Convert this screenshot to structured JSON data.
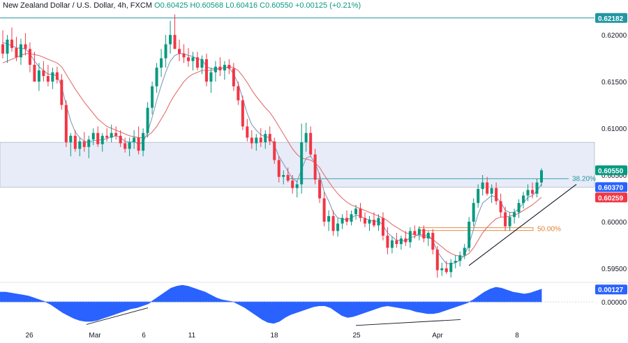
{
  "header": {
    "symbol": "New Zealand Dollar / U.S. Dollar, 4h, FXCM",
    "open": "O0.60425",
    "high": "H0.60568",
    "low": "L0.60416",
    "close": "C0.60550",
    "change": "+0.00125 (+0.21%)"
  },
  "colors": {
    "up": "#089981",
    "down": "#f23645",
    "ma_fast": "#7f9bbd",
    "ma_slow": "#e0706f",
    "level": "#2196a3",
    "fib50": "#e08030",
    "zone": "#e8ecf8",
    "osc": "#2962ff",
    "trend": "#131722"
  },
  "chart_data": [
    {
      "type": "candlestick",
      "title": "New Zealand Dollar / U.S. Dollar, 4h, FXCM",
      "ylim": [
        0.5935,
        0.6224
      ],
      "price_ticks": [
        "0.62000",
        "0.61500",
        "0.61000",
        "0.60500",
        "0.60000",
        "0.59500"
      ],
      "x_labels": [
        "26",
        "Mar",
        "6",
        "11",
        "18",
        "25",
        "Apr",
        "8"
      ],
      "price_tags": [
        {
          "label": "0.62182",
          "value": 0.62182,
          "color": "#2196a3"
        },
        {
          "label": "0.60550",
          "value": 0.6055,
          "color": "#089981"
        },
        {
          "label": "0.60370",
          "value": 0.6037,
          "color": "#2962ff"
        },
        {
          "label": "0.60259",
          "value": 0.60259,
          "color": "#f23645"
        }
      ],
      "annotations": [
        {
          "label": "38.20%",
          "value": 0.6046,
          "color": "#2196a3"
        },
        {
          "label": "50.00%",
          "value": 0.5992,
          "color": "#e08030"
        }
      ],
      "resistance_level": 0.62182,
      "zone": [
        0.6037,
        0.6085
      ],
      "trendline": [
        [
          0.5953,
          0.604
        ]
      ],
      "ohlc": [
        [
          0.619,
          0.6205,
          0.6175,
          0.618
        ],
        [
          0.618,
          0.62,
          0.617,
          0.6195
        ],
        [
          0.6195,
          0.6208,
          0.6182,
          0.6186
        ],
        [
          0.6186,
          0.6198,
          0.6172,
          0.6176
        ],
        [
          0.6176,
          0.6196,
          0.6168,
          0.619
        ],
        [
          0.619,
          0.6202,
          0.6178,
          0.6185
        ],
        [
          0.6185,
          0.6192,
          0.616,
          0.6168
        ],
        [
          0.6168,
          0.6182,
          0.615,
          0.615
        ],
        [
          0.615,
          0.617,
          0.614,
          0.6162
        ],
        [
          0.6162,
          0.6172,
          0.615,
          0.6156
        ],
        [
          0.6156,
          0.6168,
          0.6145,
          0.615
        ],
        [
          0.615,
          0.6165,
          0.6142,
          0.616
        ],
        [
          0.616,
          0.6166,
          0.6148,
          0.6152
        ],
        [
          0.6152,
          0.6158,
          0.612,
          0.6125
        ],
        [
          0.6125,
          0.613,
          0.608,
          0.6085
        ],
        [
          0.6085,
          0.6095,
          0.607,
          0.6092
        ],
        [
          0.6092,
          0.6098,
          0.6075,
          0.6078
        ],
        [
          0.6078,
          0.609,
          0.607,
          0.6086
        ],
        [
          0.6086,
          0.6096,
          0.6075,
          0.608
        ],
        [
          0.608,
          0.6092,
          0.6068,
          0.6088
        ],
        [
          0.6088,
          0.61,
          0.6082,
          0.6095
        ],
        [
          0.6095,
          0.6102,
          0.608,
          0.6083
        ],
        [
          0.6083,
          0.6095,
          0.6075,
          0.6092
        ],
        [
          0.6092,
          0.61,
          0.6086,
          0.609
        ],
        [
          0.609,
          0.6104,
          0.6085,
          0.6095
        ],
        [
          0.6095,
          0.6102,
          0.6088,
          0.6092
        ],
        [
          0.6092,
          0.6098,
          0.608,
          0.6084
        ],
        [
          0.6084,
          0.609,
          0.6074,
          0.6078
        ],
        [
          0.6078,
          0.609,
          0.607,
          0.6085
        ],
        [
          0.6085,
          0.6098,
          0.6078,
          0.609
        ],
        [
          0.609,
          0.6102,
          0.6072,
          0.6076
        ],
        [
          0.6076,
          0.61,
          0.607,
          0.6095
        ],
        [
          0.6095,
          0.6128,
          0.609,
          0.6122
        ],
        [
          0.6122,
          0.615,
          0.6115,
          0.6145
        ],
        [
          0.6145,
          0.617,
          0.6138,
          0.6165
        ],
        [
          0.6165,
          0.6185,
          0.6155,
          0.6175
        ],
        [
          0.6175,
          0.62,
          0.6165,
          0.619
        ],
        [
          0.619,
          0.6215,
          0.618,
          0.62
        ],
        [
          0.62,
          0.6222,
          0.6185,
          0.6185
        ],
        [
          0.6185,
          0.6195,
          0.6172,
          0.618
        ],
        [
          0.618,
          0.619,
          0.617,
          0.6176
        ],
        [
          0.6176,
          0.6186,
          0.6166,
          0.6172
        ],
        [
          0.6172,
          0.6182,
          0.6162,
          0.6176
        ],
        [
          0.6176,
          0.6182,
          0.6162,
          0.6165
        ],
        [
          0.6165,
          0.6178,
          0.6158,
          0.6174
        ],
        [
          0.6174,
          0.618,
          0.6145,
          0.615
        ],
        [
          0.615,
          0.6165,
          0.6138,
          0.616
        ],
        [
          0.616,
          0.6172,
          0.615,
          0.6166
        ],
        [
          0.6166,
          0.6176,
          0.6156,
          0.6162
        ],
        [
          0.6162,
          0.6172,
          0.6152,
          0.6168
        ],
        [
          0.6168,
          0.6174,
          0.6158,
          0.6164
        ],
        [
          0.6164,
          0.617,
          0.614,
          0.6145
        ],
        [
          0.6145,
          0.615,
          0.6125,
          0.613
        ],
        [
          0.613,
          0.6135,
          0.6098,
          0.6102
        ],
        [
          0.6102,
          0.611,
          0.6086,
          0.609
        ],
        [
          0.609,
          0.6098,
          0.6078,
          0.6084
        ],
        [
          0.6084,
          0.6094,
          0.6076,
          0.609
        ],
        [
          0.609,
          0.61,
          0.608,
          0.6085
        ],
        [
          0.6085,
          0.6098,
          0.6078,
          0.6094
        ],
        [
          0.6094,
          0.6102,
          0.6082,
          0.6086
        ],
        [
          0.6086,
          0.609,
          0.6062,
          0.6066
        ],
        [
          0.6066,
          0.607,
          0.6042,
          0.6048
        ],
        [
          0.6048,
          0.6055,
          0.604,
          0.605
        ],
        [
          0.605,
          0.6058,
          0.6042,
          0.6044
        ],
        [
          0.6044,
          0.605,
          0.603,
          0.6036
        ],
        [
          0.6036,
          0.6044,
          0.6026,
          0.604
        ],
        [
          0.604,
          0.6105,
          0.603,
          0.6085
        ],
        [
          0.6085,
          0.6106,
          0.6075,
          0.6095
        ],
        [
          0.6095,
          0.6102,
          0.607,
          0.6072
        ],
        [
          0.6072,
          0.6078,
          0.604,
          0.6045
        ],
        [
          0.6045,
          0.6052,
          0.602,
          0.6025
        ],
        [
          0.6025,
          0.6032,
          0.5995,
          0.6
        ],
        [
          0.6,
          0.6012,
          0.599,
          0.6006
        ],
        [
          0.6006,
          0.6012,
          0.5985,
          0.599
        ],
        [
          0.599,
          0.6004,
          0.5984,
          0.5998
        ],
        [
          0.5998,
          0.6008,
          0.5992,
          0.6004
        ],
        [
          0.6004,
          0.6012,
          0.5996,
          0.6
        ],
        [
          0.6,
          0.6012,
          0.5996,
          0.6008
        ],
        [
          0.6008,
          0.6018,
          0.6002,
          0.6014
        ],
        [
          0.6014,
          0.602,
          0.6,
          0.6004
        ],
        [
          0.6004,
          0.601,
          0.5994,
          0.5998
        ],
        [
          0.5998,
          0.6006,
          0.599,
          0.6002
        ],
        [
          0.6002,
          0.601,
          0.5994,
          0.5996
        ],
        [
          0.5996,
          0.6008,
          0.599,
          0.6004
        ],
        [
          0.6004,
          0.601,
          0.598,
          0.5985
        ],
        [
          0.5985,
          0.5994,
          0.5965,
          0.5972
        ],
        [
          0.5972,
          0.5984,
          0.5966,
          0.598
        ],
        [
          0.598,
          0.5988,
          0.5972,
          0.5976
        ],
        [
          0.5976,
          0.5985,
          0.597,
          0.5982
        ],
        [
          0.5982,
          0.599,
          0.5974,
          0.5978
        ],
        [
          0.5978,
          0.5994,
          0.5972,
          0.599
        ],
        [
          0.599,
          0.5996,
          0.5982,
          0.5986
        ],
        [
          0.5986,
          0.5995,
          0.598,
          0.5992
        ],
        [
          0.5992,
          0.5996,
          0.5978,
          0.5982
        ],
        [
          0.5982,
          0.599,
          0.5974,
          0.5988
        ],
        [
          0.5988,
          0.5992,
          0.5965,
          0.597
        ],
        [
          0.597,
          0.5974,
          0.594,
          0.5948
        ],
        [
          0.5948,
          0.5956,
          0.5942,
          0.595
        ],
        [
          0.595,
          0.5958,
          0.5944,
          0.5946
        ],
        [
          0.5946,
          0.596,
          0.594,
          0.5956
        ],
        [
          0.5956,
          0.5964,
          0.595,
          0.5958
        ],
        [
          0.5958,
          0.5968,
          0.5952,
          0.5964
        ],
        [
          0.5964,
          0.5976,
          0.596,
          0.5972
        ],
        [
          0.5972,
          0.6005,
          0.5968,
          0.6
        ],
        [
          0.6,
          0.6025,
          0.5995,
          0.602
        ],
        [
          0.602,
          0.604,
          0.6015,
          0.6035
        ],
        [
          0.6035,
          0.605,
          0.6028,
          0.6042
        ],
        [
          0.6042,
          0.6048,
          0.6028,
          0.603
        ],
        [
          0.603,
          0.604,
          0.602,
          0.6036
        ],
        [
          0.6036,
          0.6042,
          0.6018,
          0.6022
        ],
        [
          0.6022,
          0.603,
          0.6005,
          0.601
        ],
        [
          0.601,
          0.6016,
          0.599,
          0.5995
        ],
        [
          0.5995,
          0.601,
          0.599,
          0.6005
        ],
        [
          0.6005,
          0.6014,
          0.5998,
          0.601
        ],
        [
          0.601,
          0.6024,
          0.6004,
          0.602
        ],
        [
          0.602,
          0.6032,
          0.6014,
          0.6028
        ],
        [
          0.6028,
          0.604,
          0.6022,
          0.6034
        ],
        [
          0.6034,
          0.6042,
          0.6025,
          0.603
        ],
        [
          0.603,
          0.6046,
          0.6026,
          0.6042
        ],
        [
          0.6042,
          0.6057,
          0.6038,
          0.6055
        ]
      ],
      "ma_fast": [
        0.6192,
        0.619,
        0.6189,
        0.6186,
        0.6186,
        0.6185,
        0.618,
        0.6172,
        0.6166,
        0.6162,
        0.6158,
        0.6158,
        0.6156,
        0.6145,
        0.6125,
        0.6108,
        0.6096,
        0.609,
        0.6086,
        0.6085,
        0.6087,
        0.6087,
        0.6088,
        0.6089,
        0.6091,
        0.6092,
        0.609,
        0.6086,
        0.6085,
        0.6086,
        0.6083,
        0.6085,
        0.6096,
        0.6112,
        0.613,
        0.6146,
        0.616,
        0.6172,
        0.6178,
        0.618,
        0.618,
        0.6178,
        0.6177,
        0.6174,
        0.6174,
        0.6166,
        0.6164,
        0.6164,
        0.6164,
        0.6165,
        0.6165,
        0.6158,
        0.6148,
        0.6132,
        0.6116,
        0.6104,
        0.6098,
        0.6093,
        0.6091,
        0.609,
        0.6082,
        0.607,
        0.6062,
        0.6054,
        0.6046,
        0.6043,
        0.6056,
        0.6068,
        0.607,
        0.6063,
        0.605,
        0.6032,
        0.6022,
        0.601,
        0.6004,
        0.6003,
        0.6002,
        0.6004,
        0.6007,
        0.6006,
        0.6003,
        0.6002,
        0.6,
        0.6001,
        0.5996,
        0.5988,
        0.5984,
        0.598,
        0.598,
        0.5979,
        0.5983,
        0.5984,
        0.5987,
        0.5985,
        0.5986,
        0.598,
        0.5968,
        0.5961,
        0.5955,
        0.5955,
        0.5956,
        0.5959,
        0.5964,
        0.5976,
        0.5992,
        0.6008,
        0.602,
        0.6024,
        0.6028,
        0.6026,
        0.6021,
        0.6012,
        0.601,
        0.601,
        0.6014,
        0.602,
        0.6026,
        0.6028,
        0.6033,
        0.604
      ],
      "ma_slow": [
        0.617,
        0.6172,
        0.6174,
        0.6176,
        0.6178,
        0.618,
        0.618,
        0.6179,
        0.6178,
        0.6176,
        0.6174,
        0.6172,
        0.617,
        0.6166,
        0.6158,
        0.615,
        0.6142,
        0.6135,
        0.6128,
        0.6122,
        0.6116,
        0.611,
        0.6106,
        0.6102,
        0.61,
        0.6098,
        0.6096,
        0.6094,
        0.6092,
        0.6091,
        0.609,
        0.609,
        0.6092,
        0.6096,
        0.6102,
        0.611,
        0.6118,
        0.6128,
        0.6136,
        0.6143,
        0.615,
        0.6155,
        0.6158,
        0.616,
        0.6162,
        0.6162,
        0.6162,
        0.6163,
        0.6164,
        0.6165,
        0.6166,
        0.6165,
        0.6162,
        0.6156,
        0.6149,
        0.6141,
        0.6134,
        0.6128,
        0.6122,
        0.6117,
        0.611,
        0.6102,
        0.6094,
        0.6086,
        0.6078,
        0.6072,
        0.6068,
        0.6067,
        0.6066,
        0.6063,
        0.6058,
        0.605,
        0.6043,
        0.6036,
        0.603,
        0.6025,
        0.6021,
        0.6018,
        0.6016,
        0.6014,
        0.6012,
        0.601,
        0.6008,
        0.6006,
        0.6004,
        0.6001,
        0.5997,
        0.5994,
        0.5991,
        0.5988,
        0.5987,
        0.5986,
        0.5985,
        0.5984,
        0.5983,
        0.5981,
        0.5977,
        0.5973,
        0.5969,
        0.5966,
        0.5964,
        0.5963,
        0.5963,
        0.5966,
        0.5972,
        0.598,
        0.5988,
        0.5994,
        0.5999,
        0.6003,
        0.6005,
        0.6005,
        0.6006,
        0.6007,
        0.6009,
        0.6012,
        0.6015,
        0.6018,
        0.6022,
        0.6026
      ]
    },
    {
      "type": "area",
      "title": "",
      "ylim": [
        -0.0025,
        0.002
      ],
      "y_ticks": [
        "0.00000"
      ],
      "value_tags": [
        {
          "label": "0.00127",
          "value": 0.00127,
          "color": "#2962ff"
        }
      ],
      "values": [
        0.001,
        0.001,
        0.0009,
        0.0008,
        0.0007,
        0.0006,
        0.0004,
        0.0002,
        0.0,
        -0.0003,
        -0.0007,
        -0.0011,
        -0.0014,
        -0.0017,
        -0.0019,
        -0.002,
        -0.002,
        -0.0019,
        -0.0017,
        -0.0015,
        -0.0013,
        -0.0011,
        -0.0009,
        -0.0007,
        -0.0006,
        -0.0004,
        -0.0002,
        0.0002,
        0.0006,
        0.001,
        0.0014,
        0.0016,
        0.0017,
        0.0016,
        0.0014,
        0.0012,
        0.001,
        0.0007,
        0.0004,
        0.0002,
        0.0001,
        0.0,
        -0.0003,
        -0.0006,
        -0.001,
        -0.0014,
        -0.0018,
        -0.0021,
        -0.0022,
        -0.002,
        -0.0016,
        -0.0013,
        -0.0011,
        -0.0009,
        -0.0007,
        -0.0005,
        -0.0004,
        -0.0004,
        -0.0006,
        -0.001,
        -0.0014,
        -0.0016,
        -0.0015,
        -0.0013,
        -0.0011,
        -0.0009,
        -0.0007,
        -0.0005,
        -0.0004,
        -0.0005,
        -0.0006,
        -0.0007,
        -0.0008,
        -0.001,
        -0.0011,
        -0.0012,
        -0.0012,
        -0.0011,
        -0.0009,
        -0.0007,
        -0.0005,
        -0.0003,
        -0.0001,
        0.0002,
        0.0006,
        0.001,
        0.0013,
        0.0015,
        0.0014,
        0.0012,
        0.001,
        0.0009,
        0.0008,
        0.0009,
        0.0011,
        0.0013
      ],
      "divergence_lines": [
        [
          -0.0021,
          -0.0004
        ],
        [
          -0.0022,
          -0.0016
        ]
      ]
    }
  ]
}
